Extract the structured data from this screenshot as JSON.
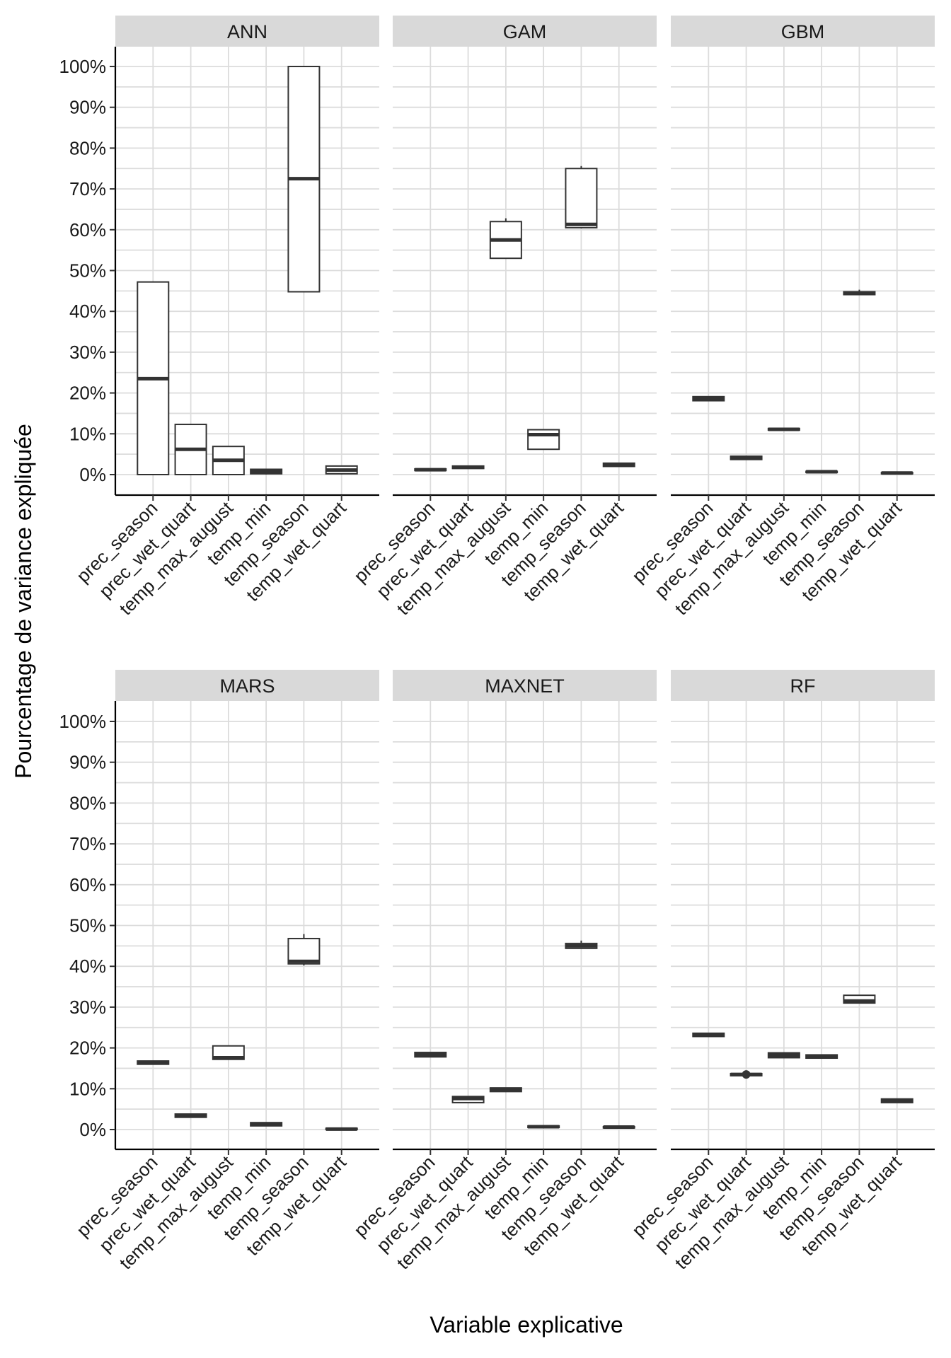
{
  "chart_data": {
    "type": "boxplot",
    "xlabel": "Variable explicative",
    "ylabel": "Pourcentage de variance expliquée",
    "ylim": [
      0,
      100
    ],
    "y_ticks": [
      "0%",
      "10%",
      "20%",
      "30%",
      "40%",
      "50%",
      "60%",
      "70%",
      "80%",
      "90%",
      "100%"
    ],
    "categories": [
      "prec_season",
      "prec_wet_quart",
      "temp_max_august",
      "temp_min",
      "temp_season",
      "temp_wet_quart"
    ],
    "facets": [
      {
        "name": "ANN",
        "boxes": [
          {
            "min": 0,
            "q1": 0,
            "median": 23.5,
            "q3": 47.2,
            "max": 47.2
          },
          {
            "min": 0,
            "q1": 0,
            "median": 6.2,
            "q3": 12.3,
            "max": 12.3
          },
          {
            "min": 0,
            "q1": 0,
            "median": 3.5,
            "q3": 6.9,
            "max": 6.9
          },
          {
            "min": 0,
            "q1": 0.2,
            "median": 0.7,
            "q3": 1.3,
            "max": 1.3
          },
          {
            "min": 44.8,
            "q1": 44.8,
            "median": 72.5,
            "q3": 100,
            "max": 100
          },
          {
            "min": 0,
            "q1": 0.2,
            "median": 1.1,
            "q3": 2.1,
            "max": 2.1
          }
        ]
      },
      {
        "name": "GAM",
        "boxes": [
          {
            "min": 1.0,
            "q1": 1.0,
            "median": 1.2,
            "q3": 1.4,
            "max": 1.4
          },
          {
            "min": 1.5,
            "q1": 1.5,
            "median": 1.8,
            "q3": 2.1,
            "max": 2.1
          },
          {
            "min": 53.0,
            "q1": 53.0,
            "median": 57.5,
            "q3": 62.0,
            "max": 62.8
          },
          {
            "min": 6.2,
            "q1": 6.2,
            "median": 9.8,
            "q3": 11.0,
            "max": 11.0
          },
          {
            "min": 60.3,
            "q1": 60.5,
            "median": 61.3,
            "q3": 75.0,
            "max": 75.6
          },
          {
            "min": 2.0,
            "q1": 2.0,
            "median": 2.4,
            "q3": 2.8,
            "max": 2.8
          }
        ]
      },
      {
        "name": "GBM",
        "boxes": [
          {
            "min": 18.1,
            "q1": 18.1,
            "median": 18.6,
            "q3": 19.1,
            "max": 19.1
          },
          {
            "min": 3.7,
            "q1": 3.7,
            "median": 4.1,
            "q3": 4.5,
            "max": 4.5
          },
          {
            "min": 10.9,
            "q1": 10.9,
            "median": 11.1,
            "q3": 11.3,
            "max": 11.3
          },
          {
            "min": 0.5,
            "q1": 0.5,
            "median": 0.7,
            "q3": 0.8,
            "max": 0.8
          },
          {
            "min": 44.1,
            "q1": 44.1,
            "median": 44.5,
            "q3": 44.8,
            "max": 45.3
          },
          {
            "min": 0.2,
            "q1": 0.2,
            "median": 0.4,
            "q3": 0.5,
            "max": 0.5
          }
        ]
      },
      {
        "name": "MARS",
        "boxes": [
          {
            "min": 16.0,
            "q1": 16.0,
            "median": 16.4,
            "q3": 16.8,
            "max": 16.8
          },
          {
            "min": 3.0,
            "q1": 3.0,
            "median": 3.4,
            "q3": 3.8,
            "max": 3.8
          },
          {
            "min": 17.2,
            "q1": 17.2,
            "median": 17.6,
            "q3": 20.5,
            "max": 20.5
          },
          {
            "min": 0.9,
            "q1": 0.9,
            "median": 1.3,
            "q3": 1.7,
            "max": 1.7
          },
          {
            "min": 40.2,
            "q1": 40.6,
            "median": 41.2,
            "q3": 46.8,
            "max": 47.9
          },
          {
            "min": 0,
            "q1": 0,
            "median": 0.1,
            "q3": 0.3,
            "max": 0.3
          }
        ]
      },
      {
        "name": "MAXNET",
        "boxes": [
          {
            "min": 17.8,
            "q1": 17.8,
            "median": 18.3,
            "q3": 18.9,
            "max": 18.9
          },
          {
            "min": 6.6,
            "q1": 6.6,
            "median": 7.6,
            "q3": 8.1,
            "max": 8.1
          },
          {
            "min": 9.3,
            "q1": 9.3,
            "median": 9.8,
            "q3": 10.2,
            "max": 10.2
          },
          {
            "min": 0.5,
            "q1": 0.5,
            "median": 0.7,
            "q3": 0.9,
            "max": 0.9
          },
          {
            "min": 44.4,
            "q1": 44.4,
            "median": 45.0,
            "q3": 45.6,
            "max": 46.3
          },
          {
            "min": 0.4,
            "q1": 0.4,
            "median": 0.6,
            "q3": 0.7,
            "max": 0.7
          }
        ]
      },
      {
        "name": "RF",
        "boxes": [
          {
            "min": 22.8,
            "q1": 22.8,
            "median": 23.2,
            "q3": 23.6,
            "max": 23.6
          },
          {
            "min": 13.2,
            "q1": 13.2,
            "median": 13.5,
            "q3": 13.7,
            "max": 13.7,
            "outliers": [
              13.5
            ]
          },
          {
            "min": 17.6,
            "q1": 17.6,
            "median": 18.2,
            "q3": 18.8,
            "max": 18.8
          },
          {
            "min": 17.5,
            "q1": 17.5,
            "median": 17.9,
            "q3": 18.3,
            "max": 18.3
          },
          {
            "min": 31.0,
            "q1": 31.0,
            "median": 31.5,
            "q3": 32.9,
            "max": 32.9
          },
          {
            "min": 6.6,
            "q1": 6.6,
            "median": 7.0,
            "q3": 7.5,
            "max": 7.5
          }
        ]
      }
    ]
  }
}
